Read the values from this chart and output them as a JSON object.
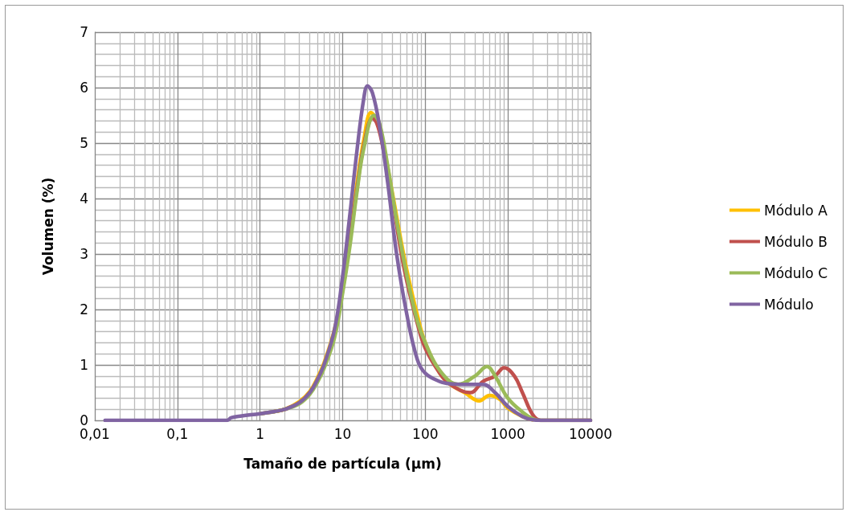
{
  "chart_data": {
    "type": "line",
    "xlabel": "Tamaño de partícula (µm)",
    "ylabel": "Volumen (%)",
    "log": "x",
    "grid": true,
    "legend": "right",
    "marker": "none",
    "line_style": "solid",
    "xlim": [
      0.01,
      10000
    ],
    "xticks": [
      {
        "value": 0.01,
        "label": "0,01"
      },
      {
        "value": 0.1,
        "label": "0,1"
      },
      1,
      10,
      100,
      1000,
      10000
    ],
    "ylim": [
      0,
      7
    ],
    "yticks": [
      0,
      1,
      2,
      3,
      4,
      5,
      6,
      7
    ],
    "series": [
      {
        "name": "Módulo A",
        "color": "#ffc000",
        "x": [
          1.5,
          2,
          3,
          4,
          5,
          6,
          8,
          10,
          12,
          15,
          18,
          22,
          25,
          30,
          40,
          50,
          60,
          80,
          100,
          150,
          200,
          300,
          450,
          600,
          800,
          1000,
          1500,
          2000
        ],
        "values": [
          0.16,
          0.2,
          0.34,
          0.52,
          0.78,
          1.05,
          1.65,
          2.4,
          3.2,
          4.3,
          5.05,
          5.55,
          5.45,
          5.05,
          4.1,
          3.3,
          2.7,
          1.9,
          1.4,
          0.85,
          0.65,
          0.5,
          0.35,
          0.45,
          0.38,
          0.22,
          0.07,
          0.01
        ]
      },
      {
        "name": "Módulo B",
        "color": "#c0504d",
        "x": [
          1,
          1.5,
          2,
          3,
          4,
          5,
          6,
          8,
          10,
          12,
          15,
          18,
          23,
          26,
          30,
          40,
          50,
          60,
          80,
          100,
          150,
          200,
          350,
          500,
          700,
          900,
          1200,
          1500,
          2000,
          2500,
          10000
        ],
        "values": [
          0.12,
          0.16,
          0.2,
          0.32,
          0.5,
          0.74,
          1.0,
          1.6,
          2.35,
          3.15,
          4.2,
          4.95,
          5.45,
          5.35,
          5.0,
          4.0,
          3.1,
          2.5,
          1.75,
          1.3,
          0.85,
          0.65,
          0.5,
          0.7,
          0.8,
          0.95,
          0.8,
          0.5,
          0.1,
          0,
          0
        ]
      },
      {
        "name": "Módulo C",
        "color": "#9bbb59",
        "x": [
          1,
          1.5,
          2,
          3,
          4,
          5,
          6,
          8,
          10,
          12,
          15,
          18,
          24,
          28,
          35,
          45,
          60,
          80,
          100,
          150,
          250,
          400,
          560,
          700,
          1000,
          1500,
          2000,
          2500,
          10000
        ],
        "values": [
          0.12,
          0.16,
          0.2,
          0.3,
          0.47,
          0.7,
          0.95,
          1.5,
          2.3,
          3.05,
          4.15,
          4.9,
          5.5,
          5.35,
          4.6,
          3.6,
          2.6,
          1.8,
          1.4,
          0.9,
          0.65,
          0.8,
          0.97,
          0.8,
          0.4,
          0.15,
          0.03,
          0,
          0
        ]
      },
      {
        "name": "Módulo",
        "color": "#8064a2",
        "x": [
          0.0133,
          0.1,
          0.4,
          0.45,
          0.6,
          1,
          1.5,
          2,
          3,
          4,
          5,
          6,
          8,
          10,
          12,
          15,
          18,
          20,
          23,
          28,
          35,
          45,
          60,
          80,
          100,
          150,
          200,
          300,
          500,
          700,
          1000,
          1500,
          2000,
          2500,
          10000
        ],
        "values": [
          0,
          0,
          0,
          0.05,
          0.08,
          0.12,
          0.16,
          0.2,
          0.32,
          0.5,
          0.75,
          1.02,
          1.65,
          2.6,
          3.6,
          4.9,
          5.8,
          6.03,
          5.9,
          5.3,
          4.3,
          3.0,
          1.9,
          1.1,
          0.85,
          0.7,
          0.66,
          0.65,
          0.65,
          0.5,
          0.25,
          0.07,
          0.01,
          0,
          0
        ]
      }
    ]
  }
}
